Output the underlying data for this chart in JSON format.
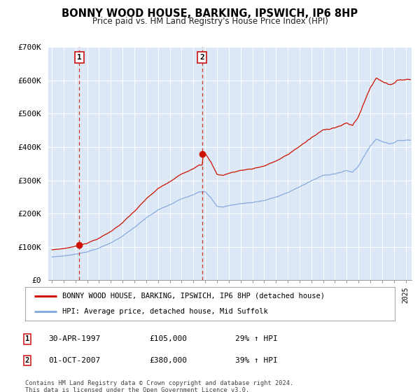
{
  "title": "BONNY WOOD HOUSE, BARKING, IPSWICH, IP6 8HP",
  "subtitle": "Price paid vs. HM Land Registry's House Price Index (HPI)",
  "background_color": "#ffffff",
  "plot_bg_color": "#dce8f5",
  "grid_color": "#ffffff",
  "line1_color": "#cc1100",
  "line2_color": "#88aadd",
  "vline_color": "#cc2200",
  "sale1_date_num": 1997.33,
  "sale1_price": 105000,
  "sale2_date_num": 2007.75,
  "sale2_price": 380000,
  "ylim": [
    0,
    700000
  ],
  "xlim_start": 1994.7,
  "xlim_end": 2025.5,
  "yticks": [
    0,
    100000,
    200000,
    300000,
    400000,
    500000,
    600000,
    700000
  ],
  "ytick_labels": [
    "£0",
    "£100K",
    "£200K",
    "£300K",
    "£400K",
    "£500K",
    "£600K",
    "£700K"
  ],
  "legend_label1": "BONNY WOOD HOUSE, BARKING, IPSWICH, IP6 8HP (detached house)",
  "legend_label2": "HPI: Average price, detached house, Mid Suffolk",
  "annotation1_label": "1",
  "annotation1_date": "30-APR-1997",
  "annotation1_price": "£105,000",
  "annotation1_hpi": "29% ↑ HPI",
  "annotation2_label": "2",
  "annotation2_date": "01-OCT-2007",
  "annotation2_price": "£380,000",
  "annotation2_hpi": "39% ↑ HPI",
  "footnote1": "Contains HM Land Registry data © Crown copyright and database right 2024.",
  "footnote2": "This data is licensed under the Open Government Licence v3.0."
}
